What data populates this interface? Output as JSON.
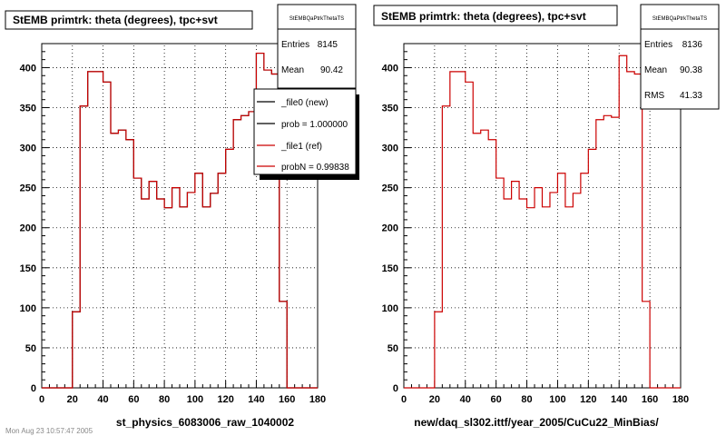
{
  "chart_data": [
    {
      "type": "histogram",
      "title": "StEMB primtrk: theta (degrees), tpc+svt",
      "xlabel": "st_physics_6083006_raw_1040002",
      "xlim": [
        0,
        180
      ],
      "ylim": [
        0,
        430
      ],
      "x_ticks": [
        "0",
        "20",
        "40",
        "60",
        "80",
        "100",
        "120",
        "140",
        "160",
        "180"
      ],
      "y_ticks": [
        "0",
        "50",
        "100",
        "150",
        "200",
        "250",
        "300",
        "350",
        "400"
      ],
      "bin_width": 5,
      "bin_start": 0,
      "series": [
        {
          "name": "_file0 (new)",
          "color": "#000000",
          "values": [
            0,
            0,
            0,
            0,
            95,
            352,
            395,
            395,
            382,
            318,
            322,
            310,
            262,
            236,
            258,
            236,
            225,
            250,
            226,
            244,
            268,
            226,
            243,
            268,
            298,
            335,
            340,
            345,
            418,
            397,
            392,
            108,
            0,
            0,
            0,
            0
          ]
        },
        {
          "name": "_file1 (ref)",
          "color": "#cc0000",
          "values": [
            0,
            0,
            0,
            0,
            95,
            352,
            395,
            395,
            382,
            318,
            322,
            310,
            262,
            236,
            258,
            236,
            225,
            250,
            226,
            244,
            268,
            226,
            243,
            268,
            298,
            335,
            340,
            345,
            418,
            397,
            392,
            108,
            0,
            0,
            0,
            0
          ]
        }
      ],
      "stats": {
        "name": "StEMBQaPtrkThetaTS",
        "entries": "8145",
        "mean": "90.42"
      },
      "legend": [
        "_file0 (new)",
        "prob = 1.000000",
        "_file1 (ref)",
        "probN = 0.99838"
      ]
    },
    {
      "type": "histogram",
      "title": "StEMB primtrk: theta (degrees), tpc+svt",
      "xlabel": "new/daq_sl302.ittf/year_2005/CuCu22_MinBias/",
      "xlim": [
        0,
        180
      ],
      "ylim": [
        0,
        430
      ],
      "x_ticks": [
        "0",
        "20",
        "40",
        "60",
        "80",
        "100",
        "120",
        "140",
        "160",
        "180"
      ],
      "y_ticks": [
        "0",
        "50",
        "100",
        "150",
        "200",
        "250",
        "300",
        "350",
        "400"
      ],
      "bin_width": 5,
      "bin_start": 0,
      "series": [
        {
          "name": "",
          "color": "#cc0000",
          "values": [
            0,
            0,
            0,
            0,
            95,
            352,
            395,
            395,
            382,
            318,
            322,
            310,
            262,
            236,
            258,
            236,
            225,
            250,
            226,
            244,
            268,
            226,
            243,
            268,
            298,
            335,
            340,
            338,
            415,
            395,
            392,
            108,
            0,
            0,
            0,
            0
          ]
        }
      ],
      "stats": {
        "name": "StEMBQaPtrkThetaTS",
        "entries": "8136",
        "mean": "90.38",
        "rms": "41.33"
      }
    }
  ],
  "labels": {
    "entries": "Entries",
    "mean": "Mean",
    "rms": "RMS"
  },
  "footer": "Mon Aug 23 10:57:47 2005"
}
